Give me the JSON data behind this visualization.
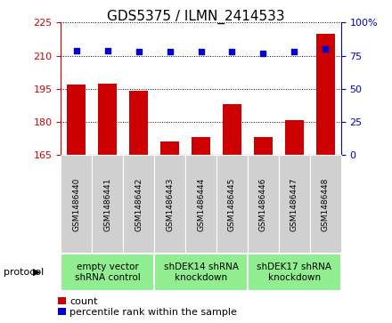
{
  "title": "GDS5375 / ILMN_2414533",
  "samples": [
    "GSM1486440",
    "GSM1486441",
    "GSM1486442",
    "GSM1486443",
    "GSM1486444",
    "GSM1486445",
    "GSM1486446",
    "GSM1486447",
    "GSM1486448"
  ],
  "counts": [
    197,
    197.5,
    194,
    171,
    173,
    188,
    173,
    181,
    220
  ],
  "percentiles": [
    79,
    79,
    78,
    78,
    78,
    78,
    77,
    78,
    80
  ],
  "ylim_left": [
    165,
    225
  ],
  "yticks_left": [
    165,
    180,
    195,
    210,
    225
  ],
  "ylim_right": [
    0,
    100
  ],
  "yticks_right": [
    0,
    25,
    50,
    75,
    100
  ],
  "bar_color": "#cc0000",
  "dot_color": "#0000cc",
  "groups": [
    {
      "label": "empty vector\nshRNA control",
      "start": 0,
      "end": 3,
      "color": "#90ee90"
    },
    {
      "label": "shDEK14 shRNA\nknockdown",
      "start": 3,
      "end": 6,
      "color": "#90ee90"
    },
    {
      "label": "shDEK17 shRNA\nknockdown",
      "start": 6,
      "end": 9,
      "color": "#90ee90"
    }
  ],
  "protocol_label": "protocol",
  "legend_count_label": "count",
  "legend_pct_label": "percentile rank within the sample",
  "title_fontsize": 11,
  "tick_fontsize": 8,
  "sample_fontsize": 6.5,
  "group_label_fontsize": 7.5,
  "protocol_fontsize": 8,
  "legend_fontsize": 8
}
